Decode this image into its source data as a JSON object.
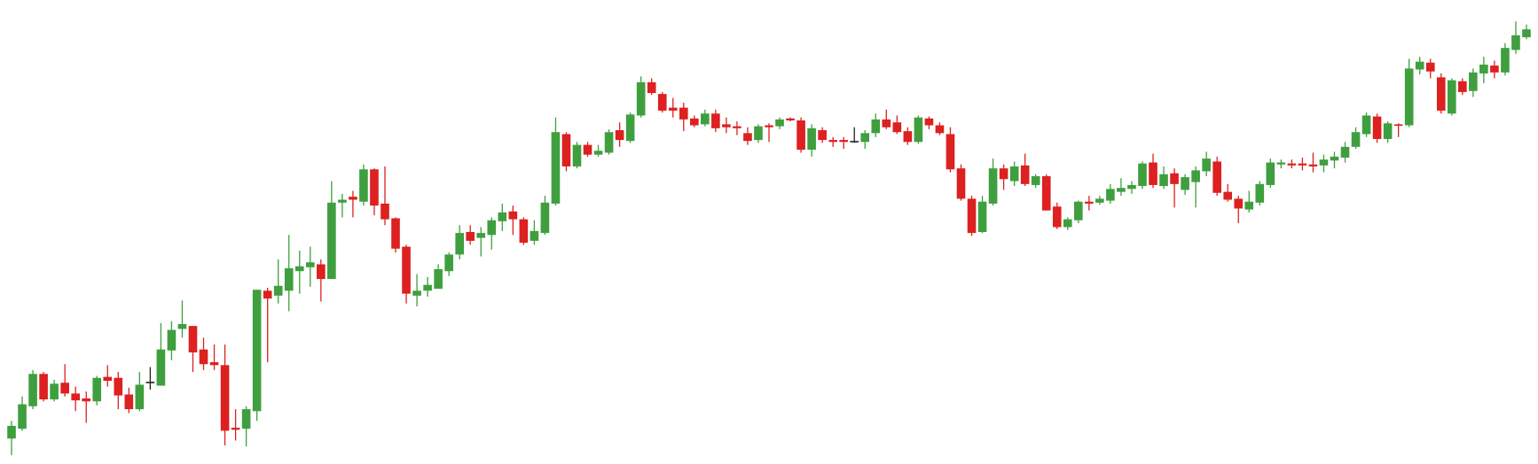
{
  "chart_data": {
    "type": "candlestick",
    "ylim": [
      0,
      474
    ],
    "up_color": "#3f9f3f",
    "down_color": "#dd2020",
    "doji_color": "#222222",
    "open": [
      26,
      36,
      59,
      92,
      66,
      83,
      72,
      67,
      64,
      89,
      88,
      71,
      56,
      84,
      80,
      116,
      138,
      141,
      117,
      104,
      101,
      37,
      36,
      54,
      177,
      172,
      177,
      197,
      201,
      204,
      189,
      267,
      273,
      268,
      301,
      266,
      251,
      222,
      172,
      177,
      179,
      197,
      214,
      237,
      231,
      234,
      248,
      258,
      250,
      228,
      236,
      266,
      337,
      304,
      326,
      316,
      318,
      341,
      330,
      356,
      390,
      378,
      364,
      364,
      353,
      347,
      358,
      347,
      345,
      338,
      331,
      346,
      345,
      353,
      351,
      321,
      341,
      331,
      331,
      330,
      329,
      338,
      352,
      349,
      340,
      329,
      353,
      346,
      337,
      302,
      271,
      237,
      266,
      302,
      289,
      305,
      285,
      294,
      263,
      242,
      249,
      268,
      267,
      269,
      278,
      281,
      284,
      308,
      284,
      297,
      280,
      288,
      299,
      309,
      278,
      271,
      260,
      267,
      285,
      306,
      307,
      307,
      306,
      305,
      310,
      313,
      324,
      337,
      355,
      332,
      347,
      346,
      403,
      410,
      395,
      358,
      391,
      381,
      399,
      407,
      400,
      423,
      436
    ],
    "high": [
      44,
      69,
      96,
      94,
      86,
      102,
      79,
      74,
      90,
      101,
      94,
      78,
      94,
      99,
      144,
      146,
      167,
      141,
      129,
      122,
      122,
      56,
      59,
      178,
      180,
      209,
      234,
      218,
      222,
      209,
      289,
      276,
      279,
      306,
      302,
      304,
      252,
      224,
      194,
      191,
      204,
      216,
      244,
      244,
      242,
      252,
      266,
      264,
      252,
      249,
      274,
      354,
      339,
      329,
      329,
      326,
      342,
      349,
      359,
      396,
      394,
      380,
      374,
      369,
      356,
      362,
      362,
      354,
      350,
      344,
      347,
      348,
      354,
      354,
      354,
      347,
      344,
      334,
      334,
      344,
      341,
      358,
      362,
      356,
      344,
      356,
      355,
      349,
      344,
      306,
      274,
      274,
      312,
      306,
      309,
      317,
      296,
      296,
      267,
      252,
      269,
      274,
      274,
      286,
      292,
      289,
      309,
      317,
      304,
      302,
      296,
      304,
      319,
      314,
      286,
      274,
      279,
      289,
      312,
      311,
      311,
      313,
      318,
      316,
      319,
      329,
      344,
      359,
      358,
      350,
      348,
      414,
      416,
      414,
      399,
      394,
      394,
      404,
      416,
      412,
      430,
      452,
      449
    ],
    "low": [
      9,
      34,
      56,
      64,
      64,
      69,
      54,
      42,
      60,
      79,
      56,
      52,
      54,
      76,
      80,
      106,
      129,
      94,
      96,
      96,
      19,
      24,
      18,
      44,
      104,
      164,
      156,
      174,
      181,
      166,
      189,
      252,
      252,
      264,
      254,
      244,
      216,
      164,
      161,
      171,
      179,
      192,
      209,
      224,
      212,
      219,
      238,
      234,
      224,
      224,
      234,
      264,
      299,
      302,
      314,
      314,
      316,
      324,
      328,
      354,
      377,
      359,
      354,
      340,
      344,
      345,
      339,
      338,
      336,
      326,
      328,
      329,
      342,
      350,
      318,
      314,
      328,
      324,
      322,
      328,
      322,
      334,
      342,
      337,
      326,
      327,
      342,
      336,
      298,
      269,
      233,
      236,
      264,
      280,
      284,
      284,
      282,
      259,
      240,
      239,
      246,
      259,
      265,
      266,
      274,
      276,
      281,
      282,
      281,
      262,
      275,
      262,
      294,
      274,
      268,
      246,
      257,
      264,
      282,
      302,
      302,
      300,
      298,
      298,
      302,
      308,
      322,
      334,
      328,
      328,
      334,
      344,
      398,
      394,
      358,
      356,
      377,
      375,
      389,
      394,
      397,
      419,
      434
    ],
    "close": [
      39,
      61,
      92,
      66,
      82,
      72,
      65,
      64,
      88,
      85,
      70,
      56,
      81,
      84,
      117,
      137,
      143,
      114,
      102,
      101,
      34,
      35,
      56,
      178,
      169,
      182,
      200,
      202,
      206,
      189,
      267,
      270,
      270,
      301,
      264,
      250,
      220,
      174,
      177,
      183,
      199,
      214,
      236,
      228,
      236,
      249,
      257,
      250,
      226,
      238,
      267,
      339,
      304,
      326,
      316,
      320,
      339,
      331,
      357,
      390,
      379,
      361,
      361,
      352,
      346,
      358,
      343,
      344,
      343,
      330,
      345,
      344,
      352,
      351,
      321,
      343,
      331,
      329,
      329,
      330,
      338,
      352,
      344,
      339,
      329,
      354,
      346,
      338,
      301,
      271,
      236,
      268,
      302,
      291,
      304,
      286,
      294,
      259,
      242,
      250,
      268,
      266,
      271,
      281,
      282,
      285,
      307,
      285,
      296,
      286,
      293,
      300,
      312,
      277,
      270,
      261,
      268,
      286,
      308,
      308,
      305,
      305,
      304,
      311,
      314,
      324,
      339,
      356,
      332,
      348,
      346,
      404,
      411,
      401,
      361,
      392,
      380,
      400,
      408,
      400,
      425,
      438,
      444
    ]
  }
}
